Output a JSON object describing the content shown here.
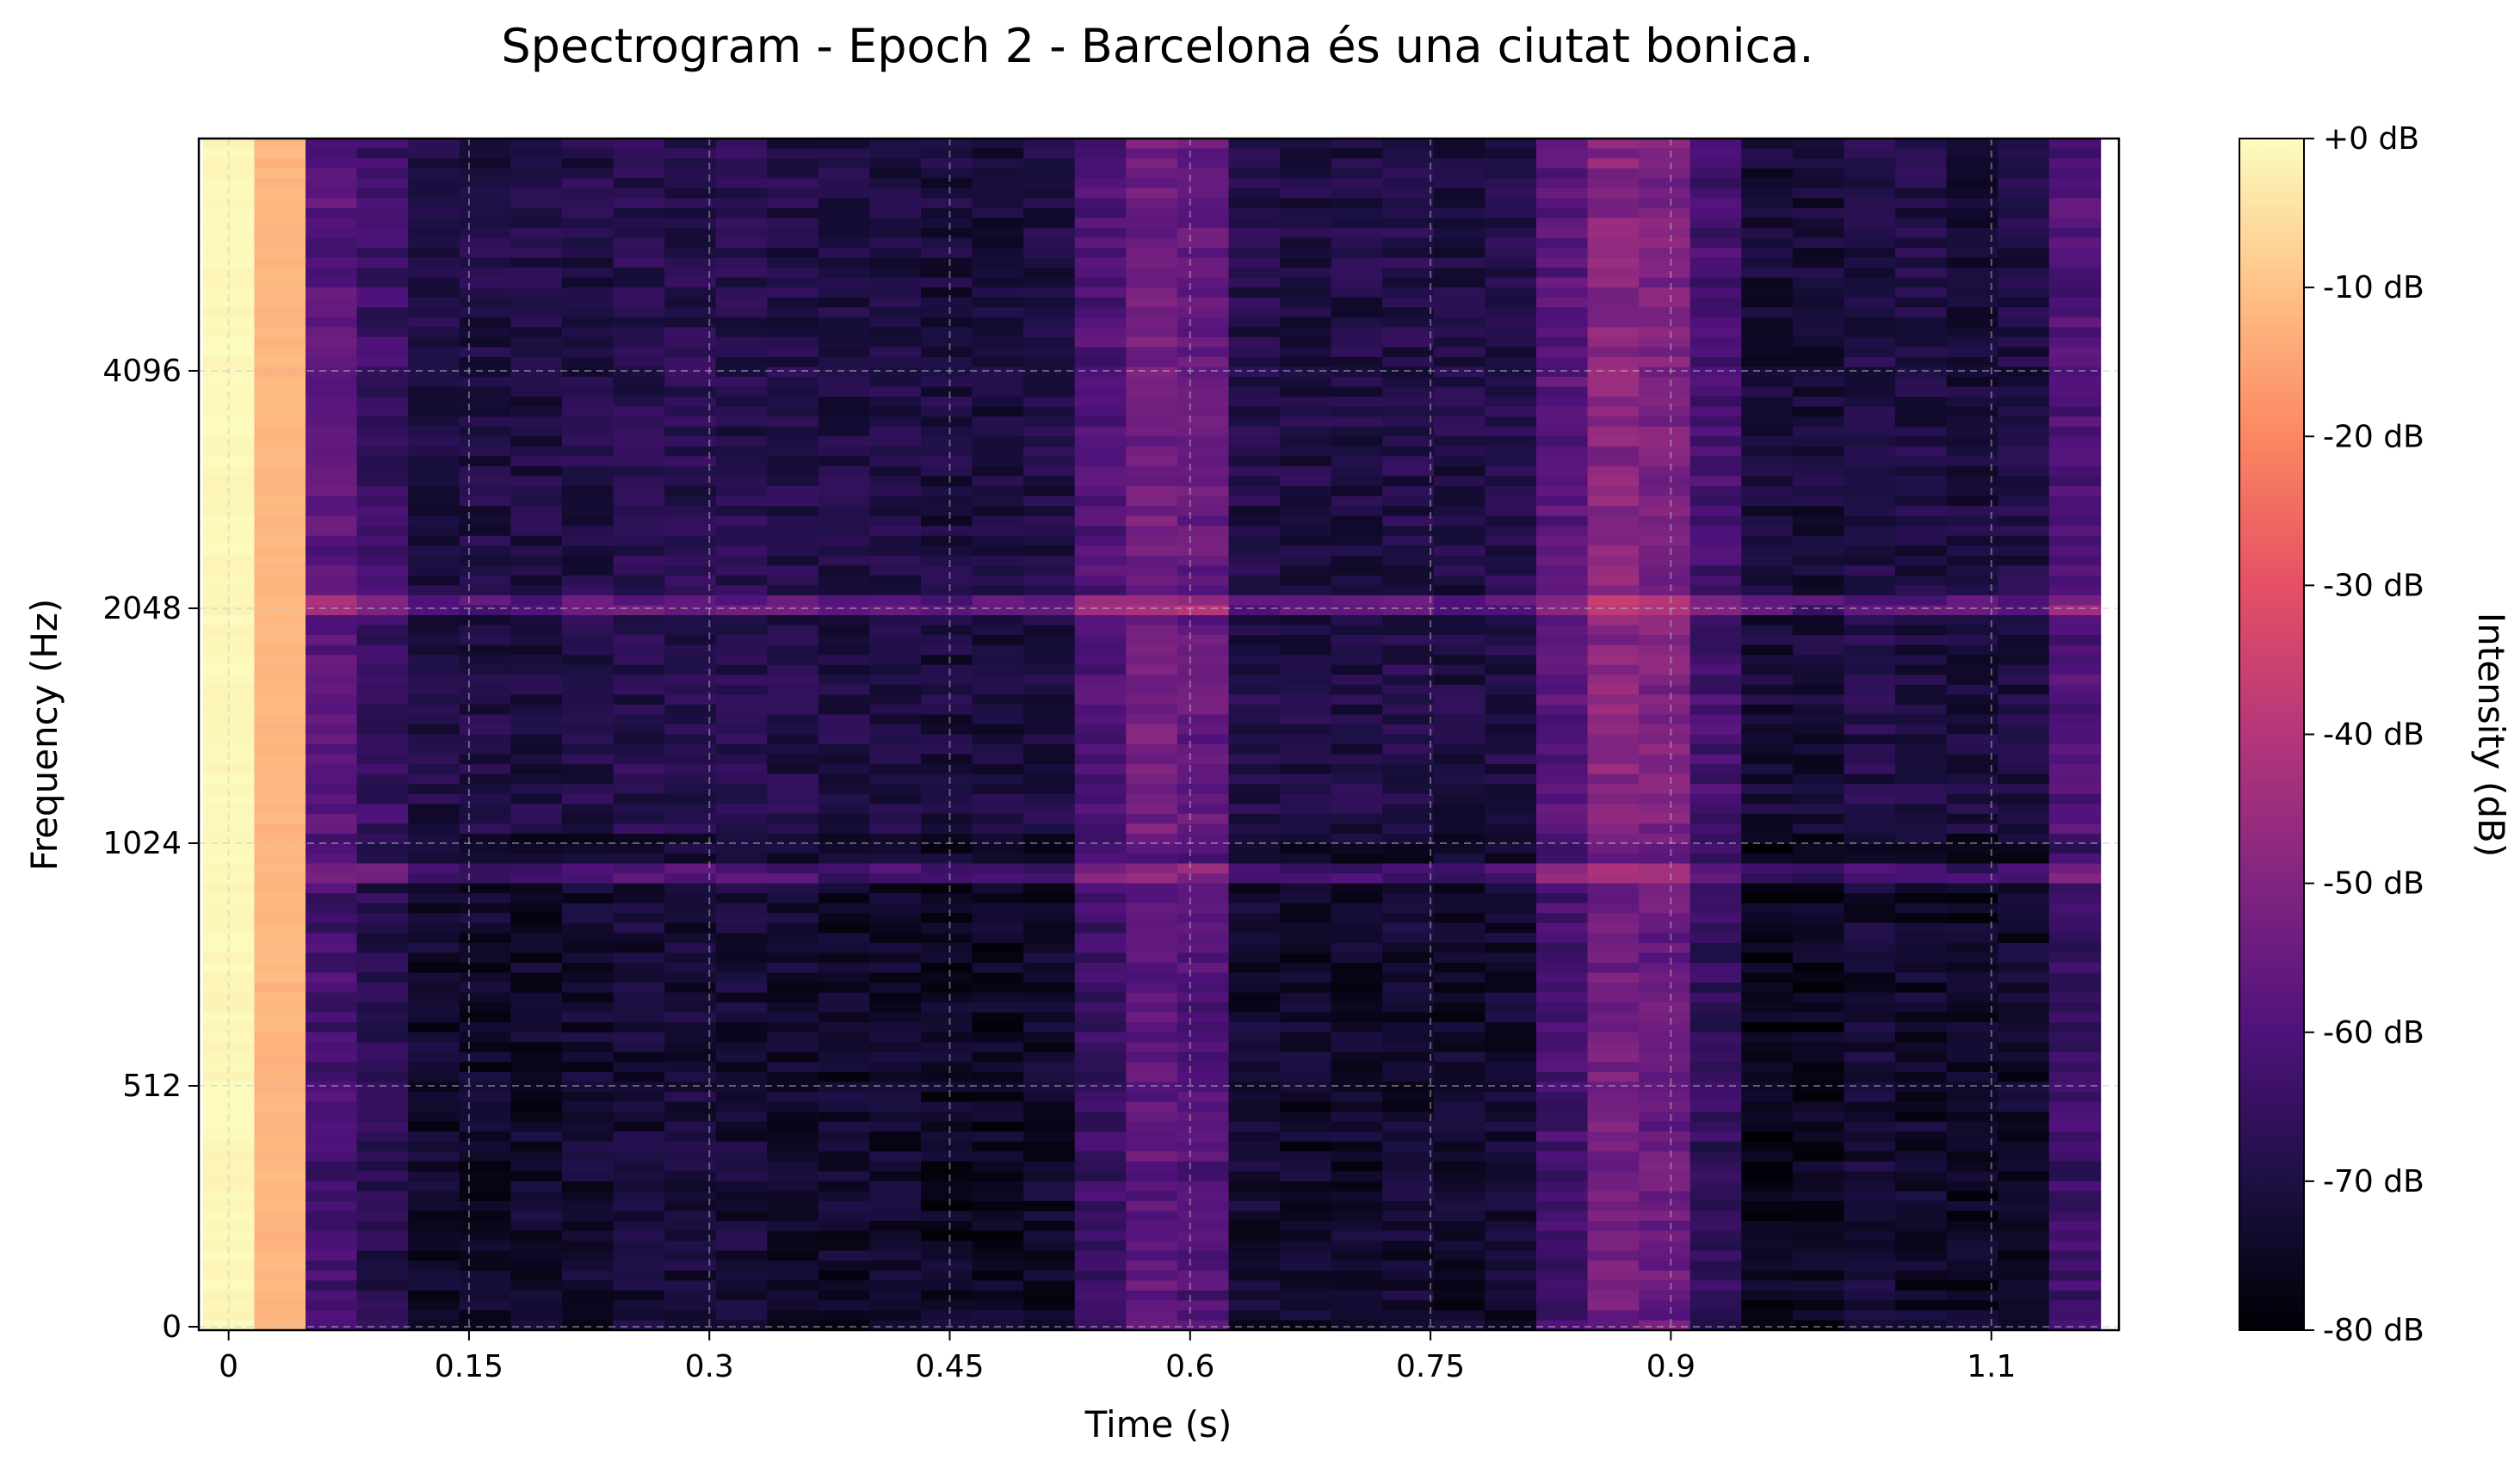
{
  "chart_data": {
    "type": "heatmap",
    "title": "Spectrogram - Epoch 2 - Barcelona és una ciutat bonica.",
    "xlabel": "Time (s)",
    "ylabel": "Frequency (Hz)",
    "colorbar_label": "Intensity (dB)",
    "colormap": "magma",
    "xlim": [
      -0.0186,
      1.1796
    ],
    "x_ticks": [
      0,
      0.15,
      0.3,
      0.45,
      0.6,
      0.75,
      0.9,
      1.1
    ],
    "x_tick_labels": [
      "0",
      "0.15",
      "0.3",
      "0.45",
      "0.6",
      "0.75",
      "0.9",
      "1.1"
    ],
    "y_ticks": [
      0,
      512,
      1024,
      2048,
      4096
    ],
    "y_tick_labels": [
      "0",
      "512",
      "1024",
      "2048",
      "4096"
    ],
    "y_scale": "log2-like (mel)",
    "colorbar_range": [
      -80,
      0
    ],
    "colorbar_ticks": [
      0,
      -10,
      -20,
      -30,
      -40,
      -50,
      -60,
      -70,
      -80
    ],
    "colorbar_tick_labels": [
      "+0 dB",
      "-10 dB",
      "-20 dB",
      "-30 dB",
      "-40 dB",
      "-50 dB",
      "-60 dB",
      "-70 dB",
      "-80 dB"
    ],
    "grid": true,
    "frames": [
      {
        "t": 0.0,
        "level_db": -1
      },
      {
        "t": 0.032,
        "level_db": -12
      },
      {
        "t": 0.064,
        "level_db": -62
      },
      {
        "t": 0.096,
        "level_db": -68
      },
      {
        "t": 0.128,
        "level_db": -74
      },
      {
        "t": 0.16,
        "level_db": -74
      },
      {
        "t": 0.192,
        "level_db": -74
      },
      {
        "t": 0.224,
        "level_db": -73
      },
      {
        "t": 0.256,
        "level_db": -72
      },
      {
        "t": 0.288,
        "level_db": -72
      },
      {
        "t": 0.32,
        "level_db": -72
      },
      {
        "t": 0.352,
        "level_db": -73
      },
      {
        "t": 0.384,
        "level_db": -74
      },
      {
        "t": 0.416,
        "level_db": -74
      },
      {
        "t": 0.448,
        "level_db": -75
      },
      {
        "t": 0.48,
        "level_db": -75
      },
      {
        "t": 0.512,
        "level_db": -74
      },
      {
        "t": 0.544,
        "level_db": -64
      },
      {
        "t": 0.576,
        "level_db": -57
      },
      {
        "t": 0.608,
        "level_db": -60
      },
      {
        "t": 0.64,
        "level_db": -73
      },
      {
        "t": 0.672,
        "level_db": -74
      },
      {
        "t": 0.704,
        "level_db": -74
      },
      {
        "t": 0.736,
        "level_db": -73
      },
      {
        "t": 0.768,
        "level_db": -74
      },
      {
        "t": 0.8,
        "level_db": -73
      },
      {
        "t": 0.832,
        "level_db": -62
      },
      {
        "t": 0.864,
        "level_db": -53
      },
      {
        "t": 0.896,
        "level_db": -55
      },
      {
        "t": 0.928,
        "level_db": -66
      },
      {
        "t": 0.96,
        "level_db": -76
      },
      {
        "t": 0.992,
        "level_db": -76
      },
      {
        "t": 1.024,
        "level_db": -73
      },
      {
        "t": 1.056,
        "level_db": -74
      },
      {
        "t": 1.088,
        "level_db": -75
      },
      {
        "t": 1.12,
        "level_db": -74
      },
      {
        "t": 1.152,
        "level_db": -64
      }
    ],
    "bright_bands_hz": [
      980,
      2100
    ]
  }
}
